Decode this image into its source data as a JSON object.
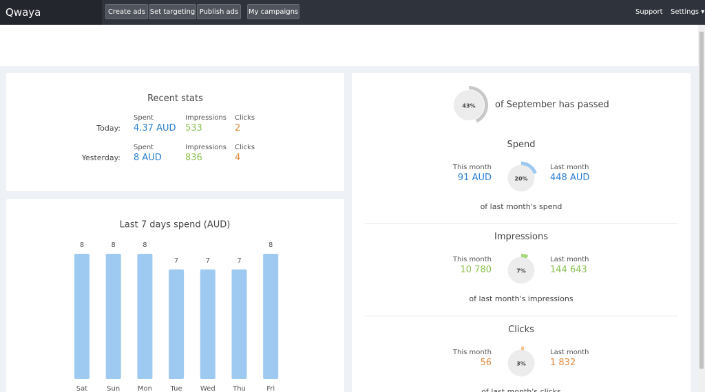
{
  "nav": {
    "logo": "Qwaya",
    "buttons": [
      "Create ads",
      "Set targeting",
      "Publish ads",
      "My campaigns"
    ],
    "right": [
      "Support",
      "Settings"
    ]
  },
  "recent_stats": {
    "title": "Recent stats",
    "rows": [
      {
        "label": "Today:",
        "spent_label": "Spent",
        "spent": "4.37 AUD",
        "impressions_label": "Impressions",
        "impressions": "533",
        "clicks_label": "Clicks",
        "clicks": "2"
      },
      {
        "label": "Yesterday:",
        "spent_label": "Spent",
        "spent": "8 AUD",
        "impressions_label": "Impressions",
        "impressions": "836",
        "clicks_label": "Clicks",
        "clicks": "4"
      }
    ]
  },
  "chart_data": {
    "type": "bar",
    "title": "Last 7 days spend (AUD)",
    "categories": [
      "Sat",
      "Sun",
      "Mon",
      "Tue",
      "Wed",
      "Thu",
      "Fri"
    ],
    "values": [
      8,
      8,
      8,
      7,
      7,
      7,
      8
    ],
    "color": "#9ec9f0",
    "ylim": [
      0,
      8
    ]
  },
  "month": {
    "gauge": {
      "value": 43,
      "label": "43%"
    },
    "text": "of September has passed",
    "color": "#c8c8c8"
  },
  "sections": [
    {
      "title": "Spend",
      "this_label": "This month",
      "this_value": "91 AUD",
      "last_label": "Last month",
      "last_value": "448 AUD",
      "gauge": {
        "value": 20,
        "label": "20%"
      },
      "caption": "of last month's spend",
      "color": "#2a7fd4",
      "arc_color": "#9ec9f0"
    },
    {
      "title": "Impressions",
      "this_label": "This month",
      "this_value": "10 780",
      "last_label": "Last month",
      "last_value": "144 643",
      "gauge": {
        "value": 7,
        "label": "7%"
      },
      "caption": "of last month's impressions",
      "color": "#8cc152",
      "arc_color": "#a6d87a"
    },
    {
      "title": "Clicks",
      "this_label": "This month",
      "this_value": "56",
      "last_label": "Last month",
      "last_value": "1 832",
      "gauge": {
        "value": 3,
        "label": "3%"
      },
      "caption": "of last month's clicks",
      "color": "#e08a3c",
      "arc_color": "#f5c08a"
    }
  ]
}
